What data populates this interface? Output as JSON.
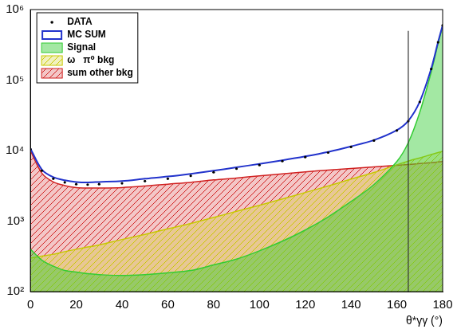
{
  "chart_data": {
    "type": "line",
    "x_label": "θ*γγ (°)",
    "x": [
      0,
      5,
      10,
      15,
      20,
      25,
      30,
      40,
      50,
      60,
      70,
      80,
      90,
      100,
      110,
      120,
      130,
      140,
      150,
      160,
      165,
      170,
      175,
      178,
      180
    ],
    "series": [
      {
        "name": "DATA",
        "type": "scatter",
        "marker": "dot",
        "color": "#000000",
        "values": [
          10500,
          5200,
          4000,
          3550,
          3350,
          3300,
          3350,
          3450,
          3700,
          4000,
          4400,
          4950,
          5550,
          6250,
          7100,
          8100,
          9400,
          11300,
          13900,
          19300,
          26200,
          49000,
          144000,
          344000,
          595000
        ]
      },
      {
        "name": "MC SUM",
        "type": "line",
        "color": "#2233cc",
        "values": [
          10700,
          5400,
          4200,
          3800,
          3600,
          3550,
          3600,
          3700,
          4000,
          4300,
          4700,
          5200,
          5800,
          6500,
          7300,
          8300,
          9600,
          11500,
          14100,
          19500,
          26500,
          49500,
          145000,
          346000,
          597000
        ]
      },
      {
        "name": "Signal",
        "type": "area",
        "color": "#33cc33",
        "values": [
          400,
          280,
          230,
          200,
          190,
          180,
          175,
          170,
          175,
          185,
          200,
          240,
          290,
          380,
          520,
          750,
          1150,
          1900,
          3300,
          7000,
          13000,
          35000,
          130000,
          330000,
          580000
        ]
      },
      {
        "name": "ω   π⁰ bkg",
        "type": "area",
        "color": "#c8c800",
        "values": [
          300,
          320,
          340,
          370,
          400,
          430,
          460,
          550,
          650,
          780,
          930,
          1130,
          1380,
          1680,
          2070,
          2550,
          3150,
          3950,
          4900,
          6300,
          7100,
          7900,
          8800,
          9400,
          9800
        ]
      },
      {
        "name": "sum other bkg",
        "type": "area",
        "color": "#d02020",
        "values": [
          10000,
          4800,
          3600,
          3200,
          3000,
          2950,
          2950,
          3000,
          3150,
          3350,
          3550,
          3850,
          4100,
          4400,
          4700,
          5000,
          5300,
          5600,
          5900,
          6200,
          6350,
          6550,
          6750,
          6900,
          7000
        ]
      }
    ],
    "vertical_line": {
      "x": 165,
      "y": [
        100,
        500000
      ]
    },
    "xlim": [
      0,
      180
    ],
    "xticks": [
      0,
      20,
      40,
      60,
      80,
      100,
      120,
      140,
      160,
      180
    ],
    "ylim": [
      100,
      1000000
    ],
    "yticks": [
      {
        "value": 100,
        "label": "10²"
      },
      {
        "value": 1000,
        "label": "10³"
      },
      {
        "value": 10000,
        "label": "10⁴"
      },
      {
        "value": 100000,
        "label": "10⁵"
      },
      {
        "value": 1000000,
        "label": "10⁶"
      }
    ],
    "log": "y",
    "grid": false,
    "legend": "upper left"
  }
}
